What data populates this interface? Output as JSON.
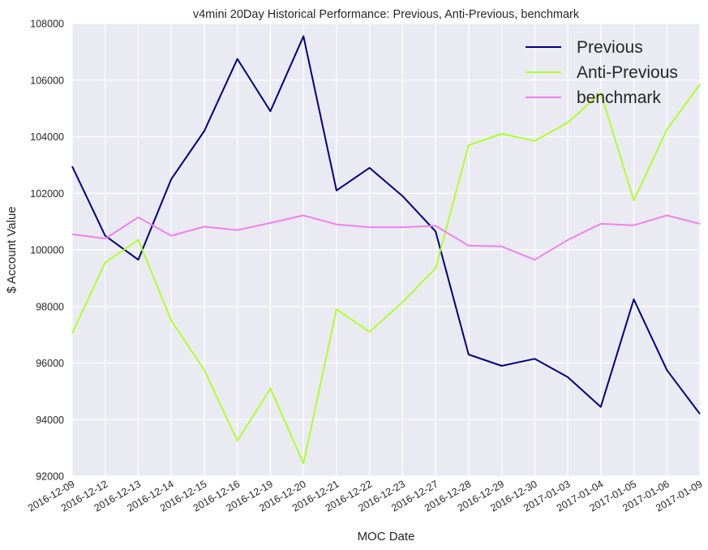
{
  "chart_data": {
    "type": "line",
    "title": "v4mini 20Day Historical Performance: Previous, Anti-Previous, benchmark",
    "xlabel": "MOC Date",
    "ylabel": "$ Account Value",
    "ylim": [
      92000,
      108000
    ],
    "yticks": [
      "92000",
      "94000",
      "96000",
      "98000",
      "100000",
      "102000",
      "104000",
      "106000",
      "108000"
    ],
    "ytick_values": [
      92000,
      94000,
      96000,
      98000,
      100000,
      102000,
      104000,
      106000,
      108000
    ],
    "grid": true,
    "legend_position": "top-right",
    "x": [
      "2016-12-09",
      "2016-12-12",
      "2016-12-13",
      "2016-12-14",
      "2016-12-15",
      "2016-12-16",
      "2016-12-19",
      "2016-12-20",
      "2016-12-21",
      "2016-12-22",
      "2016-12-23",
      "2016-12-27",
      "2016-12-28",
      "2016-12-29",
      "2016-12-30",
      "2017-01-03",
      "2017-01-04",
      "2017-01-05",
      "2017-01-06",
      "2017-01-09"
    ],
    "series": [
      {
        "name": "Previous",
        "color": "#000080",
        "values": [
          102950,
          100500,
          99650,
          102500,
          104200,
          106750,
          104900,
          107550,
          102100,
          102900,
          101900,
          100650,
          96300,
          95900,
          96150,
          95500,
          94450,
          98250,
          95750,
          94200
        ]
      },
      {
        "name": "Anti-Previous",
        "color": "#adff2f",
        "values": [
          97050,
          99550,
          100350,
          97500,
          95750,
          93250,
          95100,
          92450,
          97900,
          97100,
          98150,
          99350,
          103700,
          104100,
          103850,
          104500,
          105550,
          101750,
          104250,
          105850
        ]
      },
      {
        "name": "benchmark",
        "color": "#ee82ee",
        "values": [
          100550,
          100400,
          101150,
          100500,
          100820,
          100700,
          100950,
          101220,
          100900,
          100800,
          100800,
          100850,
          100150,
          100120,
          99650,
          100350,
          100920,
          100870,
          101220,
          100920
        ]
      }
    ]
  }
}
